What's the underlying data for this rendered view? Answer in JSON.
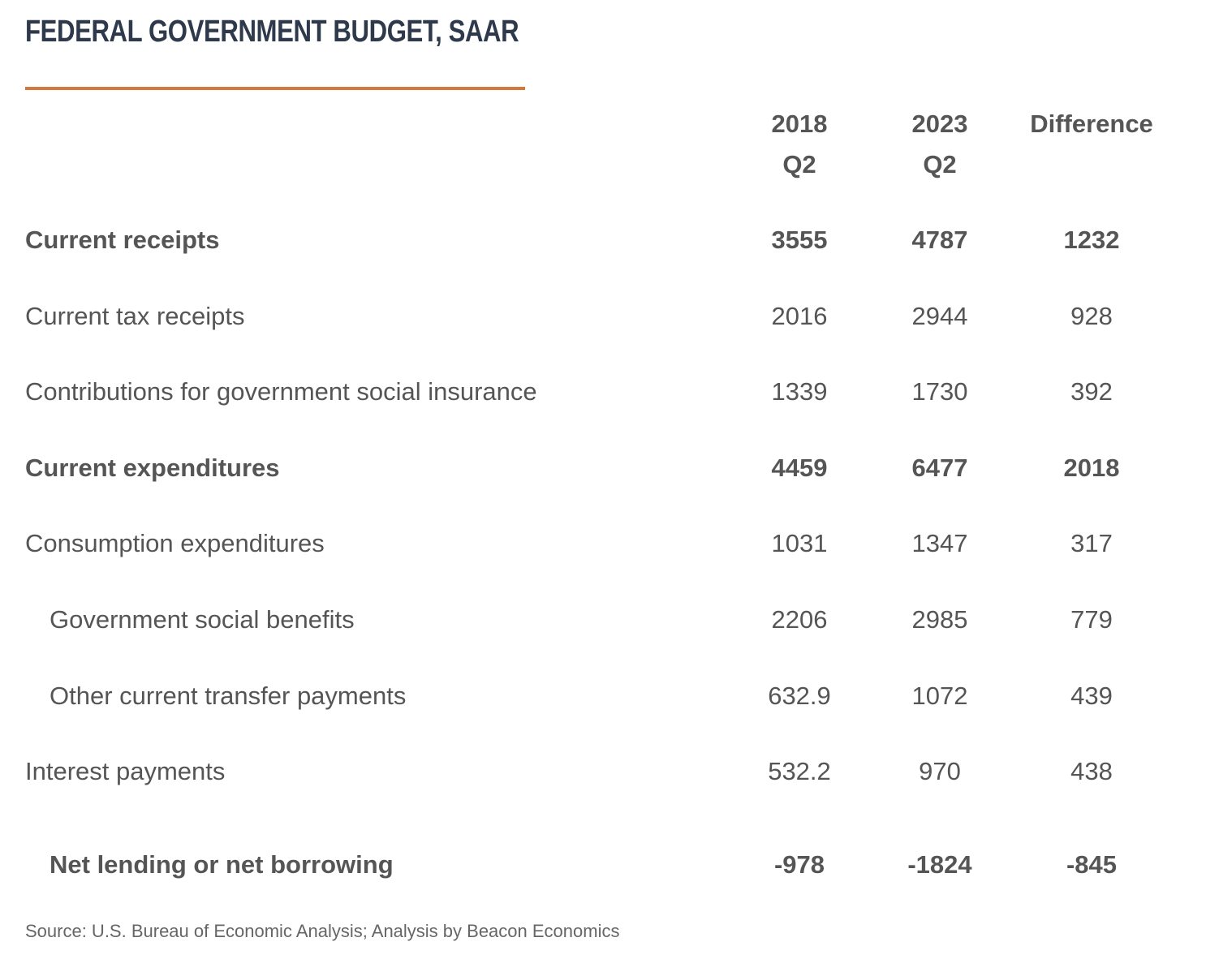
{
  "title": "FEDERAL GOVERNMENT BUDGET, SAAR",
  "columns": [
    {
      "line1": "2018",
      "line2": "Q2"
    },
    {
      "line1": "2023",
      "line2": "Q2"
    },
    {
      "line1": "Difference",
      "line2": ""
    }
  ],
  "rows": [
    {
      "label": "Current receipts",
      "v2018": "3555",
      "v2023": "4787",
      "diff": "1232"
    },
    {
      "label": "Current tax receipts",
      "v2018": "2016",
      "v2023": "2944",
      "diff": "928"
    },
    {
      "label": "Contributions for government social insurance",
      "v2018": "1339",
      "v2023": "1730",
      "diff": "392"
    },
    {
      "label": "Current expenditures",
      "v2018": "4459",
      "v2023": "6477",
      "diff": "2018"
    },
    {
      "label": "Consumption expenditures",
      "v2018": "1031",
      "v2023": "1347",
      "diff": "317"
    },
    {
      "label": "Government social benefits",
      "v2018": "2206",
      "v2023": "2985",
      "diff": "779"
    },
    {
      "label": "Other current transfer payments",
      "v2018": "632.9",
      "v2023": "1072",
      "diff": "439"
    },
    {
      "label": "Interest payments",
      "v2018": "532.2",
      "v2023": "970",
      "diff": "438"
    },
    {
      "label": "Net lending or net borrowing",
      "v2018": "-978",
      "v2023": "-1824",
      "diff": "-845"
    }
  ],
  "source": "Source: U.S. Bureau of Economic Analysis; Analysis by Beacon Economics",
  "colors": {
    "title": "#2e3a4c",
    "accent_rule": "#d4773a",
    "text": "#555555"
  }
}
